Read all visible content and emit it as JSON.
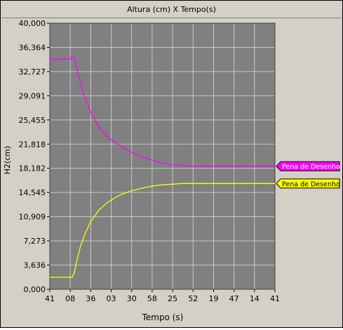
{
  "colors": {
    "plot_bg": "#808080",
    "grid": "#c8c8c8",
    "series1": "#ff00ff",
    "series2": "#ffff00",
    "panel": "#d4d0c8"
  },
  "chart_data": {
    "type": "line",
    "title": "Altura (cm)  X Tempo(s)",
    "xlabel": "Tempo (s)",
    "ylabel": "H2(cm)",
    "ylim": [
      0,
      40
    ],
    "y_ticks": [
      "0,000",
      "3,636",
      "7,273",
      "10,909",
      "14,545",
      "18,182",
      "21,818",
      "25,455",
      "29,091",
      "32,727",
      "36,364",
      "40,000"
    ],
    "x_ticks": [
      "41",
      "08",
      "36",
      "03",
      "30",
      "58",
      "25",
      "52",
      "19",
      "47",
      "14",
      "41"
    ],
    "grid": true,
    "legend": "right",
    "series": [
      {
        "name": "Pena de Desenho",
        "color": "#ff00ff",
        "points": [
          [
            0,
            34.6
          ],
          [
            0.5,
            34.6
          ],
          [
            1.0,
            34.6
          ],
          [
            1.05,
            35.0
          ],
          [
            1.18,
            34.9
          ],
          [
            1.3,
            33.5
          ],
          [
            1.5,
            30.8
          ],
          [
            1.7,
            28.9
          ],
          [
            2.0,
            26.6
          ],
          [
            2.4,
            24.4
          ],
          [
            2.8,
            23.0
          ],
          [
            3.2,
            22.0
          ],
          [
            3.6,
            21.3
          ],
          [
            4.0,
            20.6
          ],
          [
            4.5,
            19.9
          ],
          [
            5.0,
            19.4
          ],
          [
            5.5,
            19.0
          ],
          [
            6.0,
            18.7
          ],
          [
            6.5,
            18.6
          ],
          [
            7.0,
            18.5
          ],
          [
            8.0,
            18.5
          ],
          [
            9.0,
            18.5
          ],
          [
            10.0,
            18.5
          ],
          [
            11.0,
            18.5
          ]
        ]
      },
      {
        "name": "Pena de Desenho",
        "color": "#ffff00",
        "points": [
          [
            0,
            1.8
          ],
          [
            0.6,
            1.8
          ],
          [
            1.1,
            1.8
          ],
          [
            1.2,
            2.5
          ],
          [
            1.3,
            4.0
          ],
          [
            1.5,
            6.5
          ],
          [
            1.7,
            8.2
          ],
          [
            2.0,
            10.2
          ],
          [
            2.4,
            11.9
          ],
          [
            2.8,
            13.0
          ],
          [
            3.2,
            13.8
          ],
          [
            3.6,
            14.4
          ],
          [
            4.0,
            14.8
          ],
          [
            4.5,
            15.2
          ],
          [
            5.0,
            15.5
          ],
          [
            5.5,
            15.7
          ],
          [
            6.0,
            15.8
          ],
          [
            6.5,
            15.9
          ],
          [
            7.0,
            15.9
          ],
          [
            8.0,
            15.9
          ],
          [
            9.0,
            15.9
          ],
          [
            10.0,
            15.9
          ],
          [
            11.0,
            15.9
          ]
        ]
      }
    ]
  }
}
